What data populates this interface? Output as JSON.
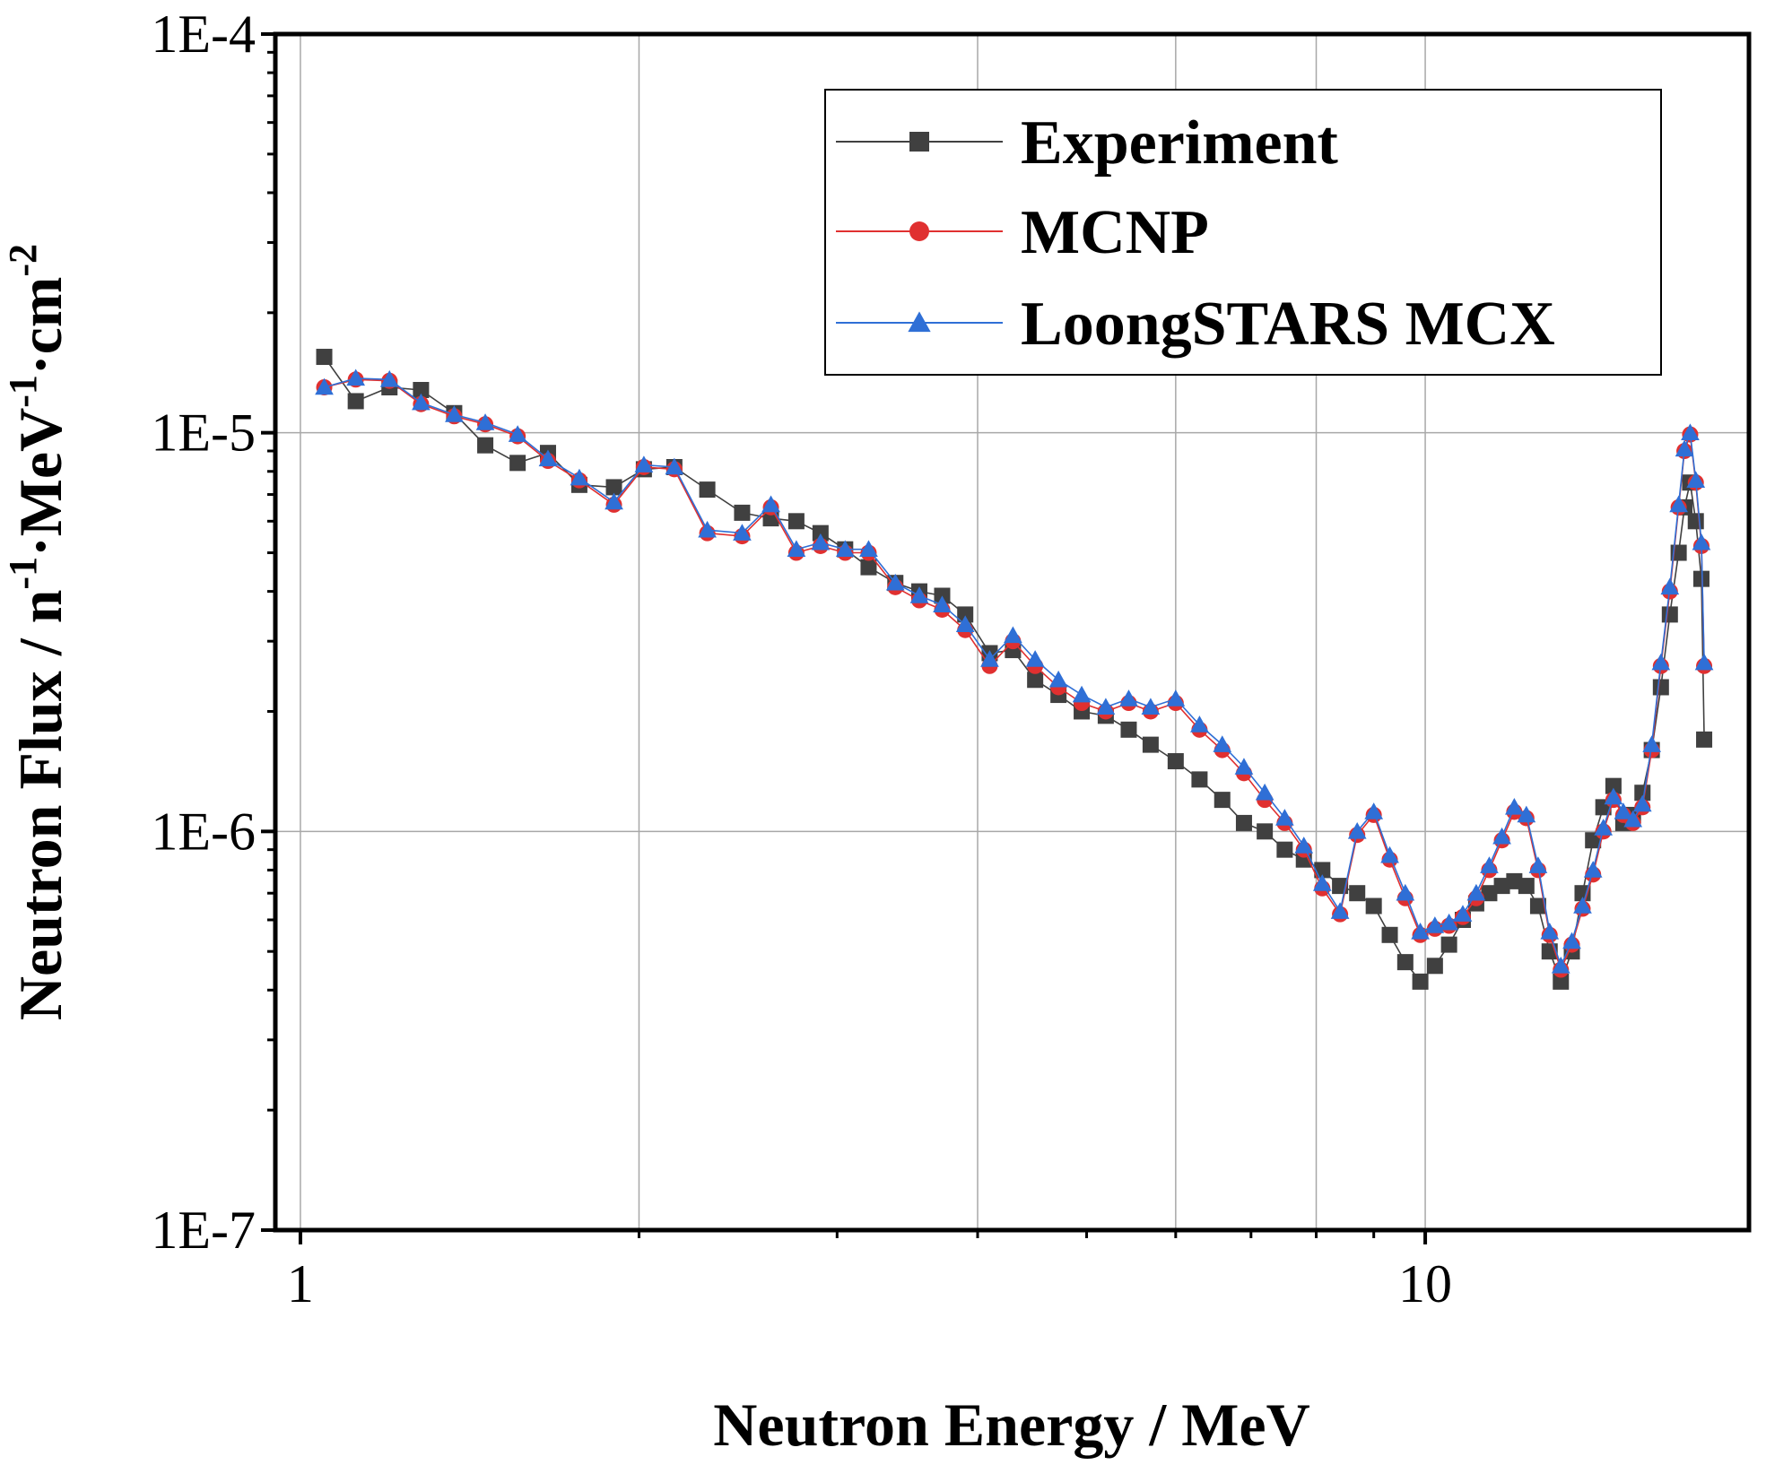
{
  "chart_data": {
    "type": "line",
    "title": "",
    "xlabel": "Neutron Energy / MeV",
    "ylabel": {
      "prefix": "Neutron Flux / n",
      "sup1": "-1",
      "mid1": "·MeV",
      "sup2": "-1",
      "mid2": "·cm",
      "sup3": "-2"
    },
    "xscale": "log",
    "yscale": "log",
    "xlim": [
      0.95,
      19.4
    ],
    "ylim": [
      1e-07,
      0.0001
    ],
    "x_ticks": [
      {
        "value": 1,
        "label": "1"
      },
      {
        "value": 10,
        "label": "10"
      }
    ],
    "x_minor_gridlines": [
      2,
      4,
      6,
      8
    ],
    "y_ticks": [
      {
        "value": 1e-07,
        "label": "1E-7"
      },
      {
        "value": 1e-06,
        "label": "1E-6"
      },
      {
        "value": 1e-05,
        "label": "1E-5"
      },
      {
        "value": 0.0001,
        "label": "1E-4"
      }
    ],
    "grid": true,
    "legend_position": "top-right",
    "series": [
      {
        "name": "Experiment",
        "color": "#404040",
        "marker": "square",
        "points": [
          [
            1.05,
            1.55e-05
          ],
          [
            1.12,
            1.2e-05
          ],
          [
            1.2,
            1.3e-05
          ],
          [
            1.28,
            1.28e-05
          ],
          [
            1.37,
            1.12e-05
          ],
          [
            1.46,
            9.3e-06
          ],
          [
            1.56,
            8.4e-06
          ],
          [
            1.66,
            8.9e-06
          ],
          [
            1.77,
            7.4e-06
          ],
          [
            1.9,
            7.3e-06
          ],
          [
            2.02,
            8.1e-06
          ],
          [
            2.15,
            8.2e-06
          ],
          [
            2.3,
            7.2e-06
          ],
          [
            2.47,
            6.3e-06
          ],
          [
            2.62,
            6.1e-06
          ],
          [
            2.76,
            6e-06
          ],
          [
            2.9,
            5.6e-06
          ],
          [
            3.05,
            5.1e-06
          ],
          [
            3.2,
            4.6e-06
          ],
          [
            3.38,
            4.2e-06
          ],
          [
            3.55,
            4e-06
          ],
          [
            3.72,
            3.9e-06
          ],
          [
            3.9,
            3.5e-06
          ],
          [
            4.1,
            2.8e-06
          ],
          [
            4.3,
            2.85e-06
          ],
          [
            4.5,
            2.4e-06
          ],
          [
            4.72,
            2.2e-06
          ],
          [
            4.95,
            2e-06
          ],
          [
            5.2,
            1.95e-06
          ],
          [
            5.45,
            1.8e-06
          ],
          [
            5.7,
            1.65e-06
          ],
          [
            6.0,
            1.5e-06
          ],
          [
            6.3,
            1.35e-06
          ],
          [
            6.6,
            1.2e-06
          ],
          [
            6.9,
            1.05e-06
          ],
          [
            7.2,
            1e-06
          ],
          [
            7.5,
            9e-07
          ],
          [
            7.8,
            8.5e-07
          ],
          [
            8.1,
            8e-07
          ],
          [
            8.4,
            7.3e-07
          ],
          [
            8.7,
            7e-07
          ],
          [
            9.0,
            6.5e-07
          ],
          [
            9.3,
            5.5e-07
          ],
          [
            9.6,
            4.7e-07
          ],
          [
            9.9,
            4.2e-07
          ],
          [
            10.2,
            4.6e-07
          ],
          [
            10.5,
            5.2e-07
          ],
          [
            10.8,
            6e-07
          ],
          [
            11.1,
            6.6e-07
          ],
          [
            11.4,
            7e-07
          ],
          [
            11.7,
            7.3e-07
          ],
          [
            12.0,
            7.5e-07
          ],
          [
            12.3,
            7.3e-07
          ],
          [
            12.6,
            6.5e-07
          ],
          [
            12.9,
            5e-07
          ],
          [
            13.2,
            4.2e-07
          ],
          [
            13.5,
            5e-07
          ],
          [
            13.8,
            7e-07
          ],
          [
            14.1,
            9.5e-07
          ],
          [
            14.4,
            1.15e-06
          ],
          [
            14.7,
            1.3e-06
          ],
          [
            15.0,
            1.05e-06
          ],
          [
            15.3,
            1.1e-06
          ],
          [
            15.6,
            1.25e-06
          ],
          [
            15.9,
            1.6e-06
          ],
          [
            16.2,
            2.3e-06
          ],
          [
            16.5,
            3.5e-06
          ],
          [
            16.8,
            5e-06
          ],
          [
            17.0,
            6.5e-06
          ],
          [
            17.2,
            7.5e-06
          ],
          [
            17.4,
            6e-06
          ],
          [
            17.6,
            4.3e-06
          ],
          [
            17.7,
            1.7e-06
          ]
        ]
      },
      {
        "name": "MCNP",
        "color": "#e03030",
        "marker": "circle",
        "points": [
          [
            1.05,
            1.3e-05
          ],
          [
            1.12,
            1.36e-05
          ],
          [
            1.2,
            1.35e-05
          ],
          [
            1.28,
            1.18e-05
          ],
          [
            1.37,
            1.1e-05
          ],
          [
            1.46,
            1.05e-05
          ],
          [
            1.56,
            9.8e-06
          ],
          [
            1.66,
            8.5e-06
          ],
          [
            1.77,
            7.6e-06
          ],
          [
            1.9,
            6.6e-06
          ],
          [
            2.02,
            8.2e-06
          ],
          [
            2.15,
            8.1e-06
          ],
          [
            2.3,
            5.6e-06
          ],
          [
            2.47,
            5.5e-06
          ],
          [
            2.62,
            6.5e-06
          ],
          [
            2.76,
            5e-06
          ],
          [
            2.9,
            5.2e-06
          ],
          [
            3.05,
            5e-06
          ],
          [
            3.2,
            5e-06
          ],
          [
            3.38,
            4.1e-06
          ],
          [
            3.55,
            3.8e-06
          ],
          [
            3.72,
            3.6e-06
          ],
          [
            3.9,
            3.2e-06
          ],
          [
            4.1,
            2.6e-06
          ],
          [
            4.3,
            3e-06
          ],
          [
            4.5,
            2.6e-06
          ],
          [
            4.72,
            2.3e-06
          ],
          [
            4.95,
            2.1e-06
          ],
          [
            5.2,
            2e-06
          ],
          [
            5.45,
            2.1e-06
          ],
          [
            5.7,
            2e-06
          ],
          [
            6.0,
            2.1e-06
          ],
          [
            6.3,
            1.8e-06
          ],
          [
            6.6,
            1.6e-06
          ],
          [
            6.9,
            1.4e-06
          ],
          [
            7.2,
            1.2e-06
          ],
          [
            7.5,
            1.05e-06
          ],
          [
            7.8,
            9e-07
          ],
          [
            8.1,
            7.2e-07
          ],
          [
            8.4,
            6.2e-07
          ],
          [
            8.7,
            9.8e-07
          ],
          [
            9.0,
            1.1e-06
          ],
          [
            9.3,
            8.5e-07
          ],
          [
            9.6,
            6.8e-07
          ],
          [
            9.9,
            5.5e-07
          ],
          [
            10.2,
            5.7e-07
          ],
          [
            10.5,
            5.8e-07
          ],
          [
            10.8,
            6.1e-07
          ],
          [
            11.1,
            6.8e-07
          ],
          [
            11.4,
            8e-07
          ],
          [
            11.7,
            9.5e-07
          ],
          [
            12.0,
            1.12e-06
          ],
          [
            12.3,
            1.08e-06
          ],
          [
            12.6,
            8e-07
          ],
          [
            12.9,
            5.5e-07
          ],
          [
            13.2,
            4.5e-07
          ],
          [
            13.5,
            5.2e-07
          ],
          [
            13.8,
            6.4e-07
          ],
          [
            14.1,
            7.8e-07
          ],
          [
            14.4,
            1e-06
          ],
          [
            14.7,
            1.2e-06
          ],
          [
            15.0,
            1.1e-06
          ],
          [
            15.3,
            1.05e-06
          ],
          [
            15.6,
            1.15e-06
          ],
          [
            15.9,
            1.6e-06
          ],
          [
            16.2,
            2.6e-06
          ],
          [
            16.5,
            4e-06
          ],
          [
            16.8,
            6.5e-06
          ],
          [
            17.0,
            9e-06
          ],
          [
            17.2,
            9.9e-06
          ],
          [
            17.4,
            7.5e-06
          ],
          [
            17.6,
            5.2e-06
          ],
          [
            17.7,
            2.6e-06
          ]
        ]
      },
      {
        "name": "LoongSTARS MCX",
        "color": "#2f6fd6",
        "marker": "triangle",
        "points": [
          [
            1.05,
            1.3e-05
          ],
          [
            1.12,
            1.37e-05
          ],
          [
            1.2,
            1.36e-05
          ],
          [
            1.28,
            1.19e-05
          ],
          [
            1.37,
            1.11e-05
          ],
          [
            1.46,
            1.06e-05
          ],
          [
            1.56,
            9.9e-06
          ],
          [
            1.66,
            8.6e-06
          ],
          [
            1.77,
            7.7e-06
          ],
          [
            1.9,
            6.7e-06
          ],
          [
            2.02,
            8.3e-06
          ],
          [
            2.15,
            8.2e-06
          ],
          [
            2.3,
            5.7e-06
          ],
          [
            2.47,
            5.6e-06
          ],
          [
            2.62,
            6.6e-06
          ],
          [
            2.76,
            5.1e-06
          ],
          [
            2.9,
            5.3e-06
          ],
          [
            3.05,
            5.1e-06
          ],
          [
            3.2,
            5.1e-06
          ],
          [
            3.38,
            4.2e-06
          ],
          [
            3.55,
            3.9e-06
          ],
          [
            3.72,
            3.7e-06
          ],
          [
            3.9,
            3.3e-06
          ],
          [
            4.1,
            2.7e-06
          ],
          [
            4.3,
            3.1e-06
          ],
          [
            4.5,
            2.7e-06
          ],
          [
            4.72,
            2.4e-06
          ],
          [
            4.95,
            2.2e-06
          ],
          [
            5.2,
            2.05e-06
          ],
          [
            5.45,
            2.15e-06
          ],
          [
            5.7,
            2.05e-06
          ],
          [
            6.0,
            2.15e-06
          ],
          [
            6.3,
            1.85e-06
          ],
          [
            6.6,
            1.65e-06
          ],
          [
            6.9,
            1.45e-06
          ],
          [
            7.2,
            1.25e-06
          ],
          [
            7.5,
            1.08e-06
          ],
          [
            7.8,
            9.2e-07
          ],
          [
            8.1,
            7.4e-07
          ],
          [
            8.4,
            6.3e-07
          ],
          [
            8.7,
            1e-06
          ],
          [
            9.0,
            1.12e-06
          ],
          [
            9.3,
            8.7e-07
          ],
          [
            9.6,
            7e-07
          ],
          [
            9.9,
            5.6e-07
          ],
          [
            10.2,
            5.8e-07
          ],
          [
            10.5,
            5.9e-07
          ],
          [
            10.8,
            6.2e-07
          ],
          [
            11.1,
            7e-07
          ],
          [
            11.4,
            8.2e-07
          ],
          [
            11.7,
            9.7e-07
          ],
          [
            12.0,
            1.15e-06
          ],
          [
            12.3,
            1.1e-06
          ],
          [
            12.6,
            8.2e-07
          ],
          [
            12.9,
            5.6e-07
          ],
          [
            13.2,
            4.6e-07
          ],
          [
            13.5,
            5.3e-07
          ],
          [
            13.8,
            6.5e-07
          ],
          [
            14.1,
            8e-07
          ],
          [
            14.4,
            1.02e-06
          ],
          [
            14.7,
            1.22e-06
          ],
          [
            15.0,
            1.12e-06
          ],
          [
            15.3,
            1.07e-06
          ],
          [
            15.6,
            1.17e-06
          ],
          [
            15.9,
            1.65e-06
          ],
          [
            16.2,
            2.65e-06
          ],
          [
            16.5,
            4.1e-06
          ],
          [
            16.8,
            6.6e-06
          ],
          [
            17.0,
            9.1e-06
          ],
          [
            17.2,
            1e-05
          ],
          [
            17.4,
            7.6e-06
          ],
          [
            17.6,
            5.3e-06
          ],
          [
            17.7,
            2.65e-06
          ]
        ]
      }
    ]
  }
}
